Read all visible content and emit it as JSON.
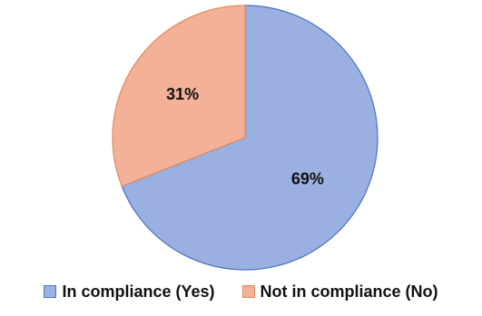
{
  "chart_data": {
    "type": "pie",
    "categories": [
      "In compliance (Yes)",
      "Not in compliance (No)"
    ],
    "values": [
      69,
      31
    ],
    "value_labels": [
      "69%",
      "31%"
    ],
    "colors": [
      "#9AB0E0",
      "#F3B197"
    ],
    "stroke_colors": [
      "#4A71C4",
      "#E08A5E"
    ],
    "legend_position": "bottom"
  }
}
